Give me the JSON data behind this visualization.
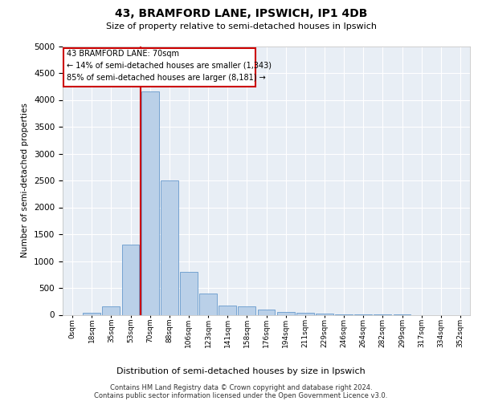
{
  "title": "43, BRAMFORD LANE, IPSWICH, IP1 4DB",
  "subtitle": "Size of property relative to semi-detached houses in Ipswich",
  "xlabel": "Distribution of semi-detached houses by size in Ipswich",
  "ylabel": "Number of semi-detached properties",
  "footnote1": "Contains HM Land Registry data © Crown copyright and database right 2024.",
  "footnote2": "Contains public sector information licensed under the Open Government Licence v3.0.",
  "annotation_title": "43 BRAMFORD LANE: 70sqm",
  "annotation_line1": "← 14% of semi-detached houses are smaller (1,343)",
  "annotation_line2": "85% of semi-detached houses are larger (8,181) →",
  "bar_labels": [
    "0sqm",
    "18sqm",
    "35sqm",
    "53sqm",
    "70sqm",
    "88sqm",
    "106sqm",
    "123sqm",
    "141sqm",
    "158sqm",
    "176sqm",
    "194sqm",
    "211sqm",
    "229sqm",
    "246sqm",
    "264sqm",
    "282sqm",
    "299sqm",
    "317sqm",
    "334sqm",
    "352sqm"
  ],
  "bar_values": [
    0,
    30,
    150,
    1300,
    4150,
    2500,
    800,
    400,
    175,
    155,
    100,
    55,
    30,
    15,
    5,
    3,
    1,
    1,
    0,
    0,
    0
  ],
  "highlight_index": 4,
  "bar_color": "#bad0e8",
  "bar_edge_color": "#6699cc",
  "highlight_line_color": "#cc0000",
  "annotation_box_color": "#cc0000",
  "background_color": "#e8eef5",
  "grid_color": "#ffffff",
  "ylim": [
    0,
    5000
  ],
  "yticks": [
    0,
    500,
    1000,
    1500,
    2000,
    2500,
    3000,
    3500,
    4000,
    4500,
    5000
  ],
  "title_fontsize": 10,
  "subtitle_fontsize": 8,
  "ylabel_fontsize": 7.5,
  "xlabel_fontsize": 8,
  "tick_fontsize": 7.5,
  "xtick_fontsize": 6.5,
  "footnote_fontsize": 6,
  "ann_fontsize": 7
}
